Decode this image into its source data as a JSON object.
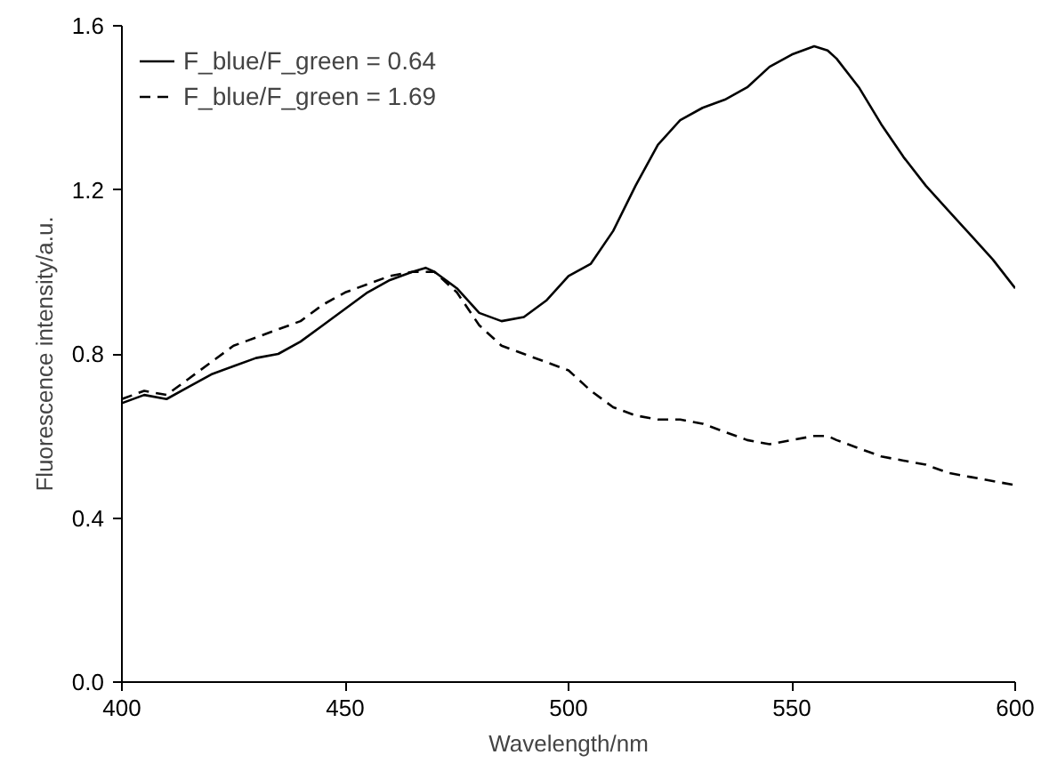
{
  "chart_data": {
    "type": "line",
    "xlabel": "Wavelength/nm",
    "ylabel": "Fluorescence intensity/a.u.",
    "x": [
      400,
      405,
      410,
      415,
      420,
      425,
      430,
      435,
      440,
      445,
      450,
      455,
      460,
      465,
      468,
      470,
      475,
      480,
      485,
      490,
      495,
      500,
      505,
      510,
      515,
      520,
      525,
      530,
      535,
      540,
      545,
      550,
      555,
      558,
      560,
      565,
      570,
      575,
      580,
      585,
      590,
      595,
      600
    ],
    "series": [
      {
        "name": "F_blue/F_green = 0.64",
        "color": "#000000",
        "line_style": "solid",
        "values": [
          0.68,
          0.7,
          0.69,
          0.72,
          0.75,
          0.77,
          0.79,
          0.8,
          0.83,
          0.87,
          0.91,
          0.95,
          0.98,
          1.0,
          1.01,
          1.0,
          0.96,
          0.9,
          0.88,
          0.89,
          0.93,
          0.99,
          1.02,
          1.1,
          1.21,
          1.31,
          1.37,
          1.4,
          1.42,
          1.45,
          1.5,
          1.53,
          1.55,
          1.54,
          1.52,
          1.45,
          1.36,
          1.28,
          1.21,
          1.15,
          1.09,
          1.03,
          0.96
        ]
      },
      {
        "name": "F_blue/F_green = 1.69",
        "color": "#000000",
        "line_style": "dashed",
        "values": [
          0.69,
          0.71,
          0.7,
          0.74,
          0.78,
          0.82,
          0.84,
          0.86,
          0.88,
          0.92,
          0.95,
          0.97,
          0.99,
          1.0,
          1.0,
          1.0,
          0.95,
          0.87,
          0.82,
          0.8,
          0.78,
          0.76,
          0.71,
          0.67,
          0.65,
          0.64,
          0.64,
          0.63,
          0.61,
          0.59,
          0.58,
          0.59,
          0.6,
          0.6,
          0.59,
          0.57,
          0.55,
          0.54,
          0.53,
          0.51,
          0.5,
          0.49,
          0.48
        ]
      }
    ],
    "xlim": [
      400,
      600
    ],
    "xticks": [
      400,
      450,
      500,
      550,
      600
    ],
    "ylim": [
      0,
      1.6
    ],
    "yticks": [
      {
        "value": 0,
        "label": "0.0"
      },
      {
        "value": 0.4,
        "label": "0.4"
      },
      {
        "value": 0.8,
        "label": "0.8"
      },
      {
        "value": 1.2,
        "label": "1.2"
      },
      {
        "value": 1.6,
        "label": "1.6"
      }
    ],
    "grid": false,
    "legend": "top left"
  }
}
